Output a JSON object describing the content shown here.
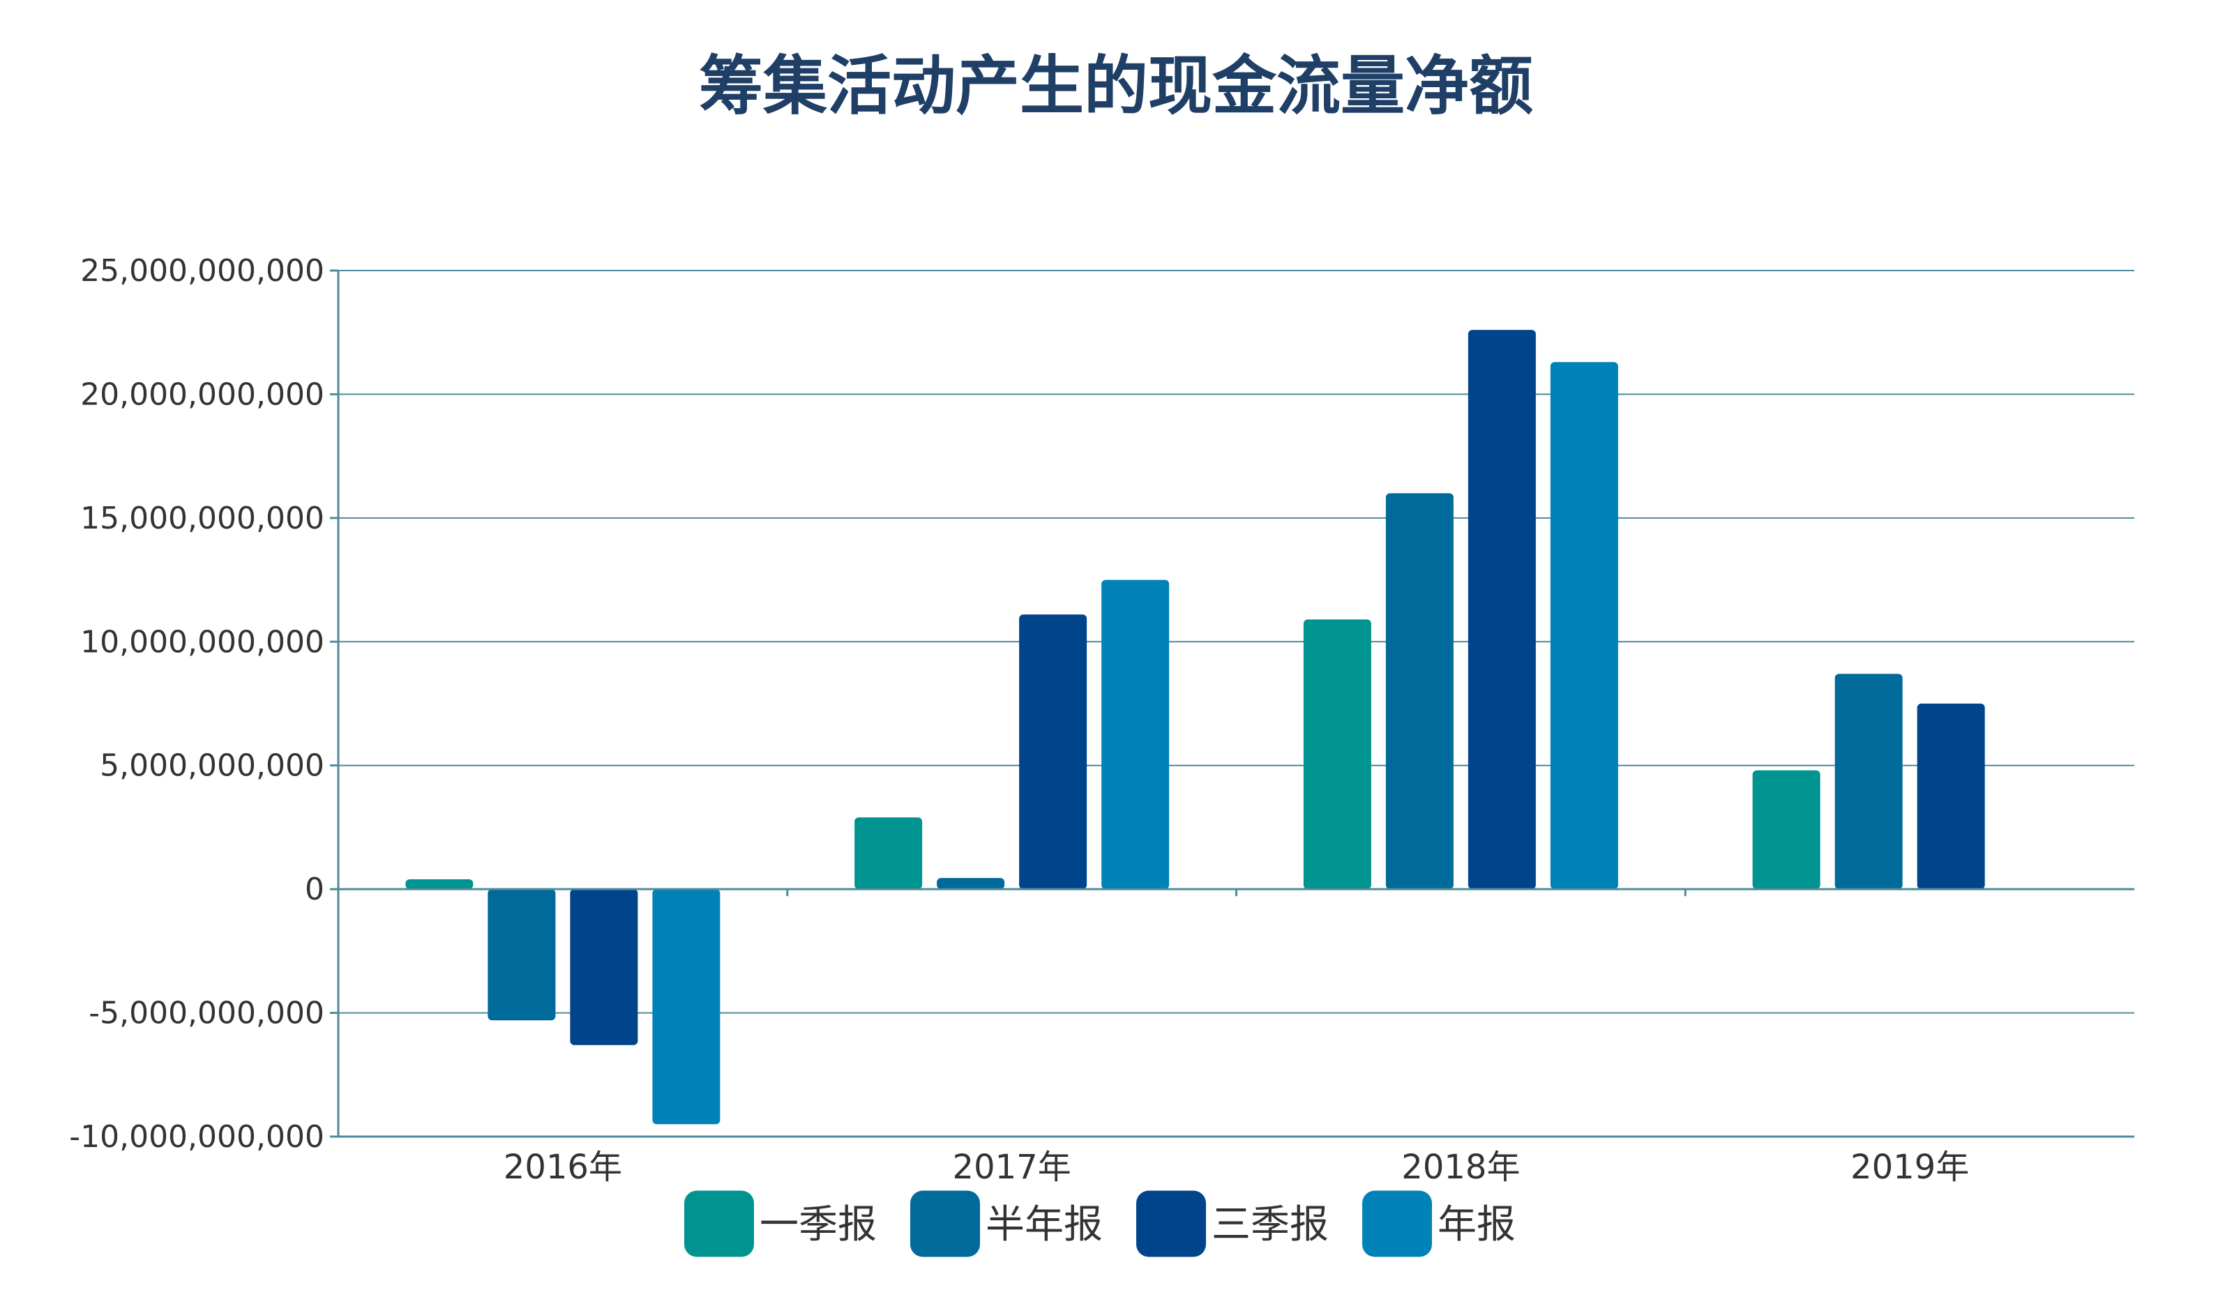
{
  "chart_data": {
    "type": "bar",
    "title": "筹集活动产生的现金流量净额",
    "xlabel": "",
    "ylabel": "",
    "categories": [
      "2016年",
      "2017年",
      "2018年",
      "2019年"
    ],
    "ylim": [
      -10000000000,
      25000000000
    ],
    "yticks": [
      25000000000,
      20000000000,
      15000000000,
      10000000000,
      5000000000,
      0,
      -5000000000,
      -10000000000
    ],
    "ytick_labels": [
      "25,000,000,000",
      "20,000,000,000",
      "15,000,000,000",
      "10,000,000,000",
      "5,000,000,000",
      "0",
      "-5,000,000,000",
      "-10,000,000,000"
    ],
    "legend_position": "bottom",
    "grid": true,
    "series": [
      {
        "name": "一季报",
        "color": "#009490",
        "values": [
          400000000,
          2900000000,
          10900000000,
          4800000000
        ]
      },
      {
        "name": "半年报",
        "color": "#006a9a",
        "values": [
          -5300000000,
          450000000,
          16000000000,
          8700000000
        ]
      },
      {
        "name": "三季报",
        "color": "#00458b",
        "values": [
          -6300000000,
          11100000000,
          22600000000,
          7500000000
        ]
      },
      {
        "name": "年报",
        "color": "#0082b8",
        "values": [
          -9500000000,
          12500000000,
          21300000000,
          null
        ]
      }
    ]
  }
}
